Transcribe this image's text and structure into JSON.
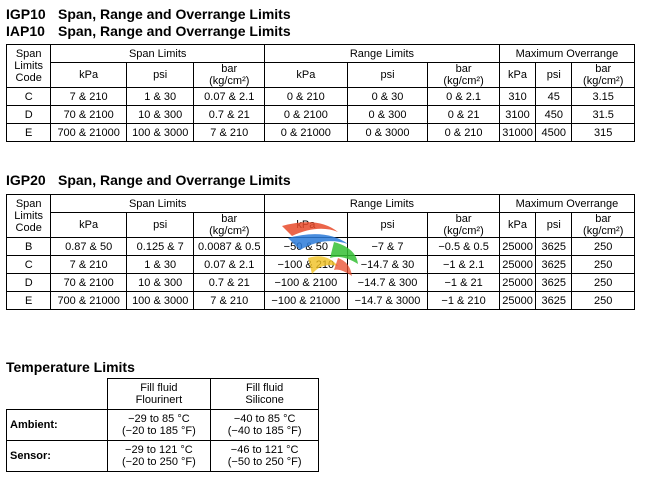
{
  "sections": {
    "igp10": {
      "code": "IGP10",
      "title": "Span, Range and Overrange Limits"
    },
    "iap10": {
      "code": "IAP10",
      "title": "Span, Range and Overrange Limits"
    },
    "igp20": {
      "code": "IGP20",
      "title": "Span, Range and Overrange Limits"
    },
    "temperature": {
      "title": "Temperature Limits"
    }
  },
  "table_headers": {
    "span_code": [
      "Span",
      "Limits",
      "Code"
    ],
    "span_limits": "Span Limits",
    "range_limits": "Range Limits",
    "max_overrange": "Maximum Overrange",
    "kpa": "kPa",
    "psi": "psi",
    "bar": "bar",
    "bar_unit": "(kg/cm²)"
  },
  "table1_rows": [
    {
      "code": "C",
      "span_kpa": "7 & 210",
      "span_psi": "1 & 30",
      "span_bar": "0.07 & 2.1",
      "range_kpa": "0 & 210",
      "range_psi": "0 & 30",
      "range_bar": "0 & 2.1",
      "over_kpa": "310",
      "over_psi": "45",
      "over_bar": "3.15"
    },
    {
      "code": "D",
      "span_kpa": "70 & 2100",
      "span_psi": "10 & 300",
      "span_bar": "0.7 & 21",
      "range_kpa": "0 & 2100",
      "range_psi": "0 & 300",
      "range_bar": "0 & 21",
      "over_kpa": "3100",
      "over_psi": "450",
      "over_bar": "31.5"
    },
    {
      "code": "E",
      "span_kpa": "700 & 21000",
      "span_psi": "100 & 3000",
      "span_bar": "7 & 210",
      "range_kpa": "0 & 21000",
      "range_psi": "0 & 3000",
      "range_bar": "0 & 210",
      "over_kpa": "31000",
      "over_psi": "4500",
      "over_bar": "315"
    }
  ],
  "table2_rows": [
    {
      "code": "B",
      "span_kpa": "0.87 & 50",
      "span_psi": "0.125 & 7",
      "span_bar": "0.0087 & 0.5",
      "range_kpa": "−50 & 50",
      "range_psi": "−7 & 7",
      "range_bar": "−0.5 & 0.5",
      "over_kpa": "25000",
      "over_psi": "3625",
      "over_bar": "250"
    },
    {
      "code": "C",
      "span_kpa": "7 & 210",
      "span_psi": "1 & 30",
      "span_bar": "0.07 & 2.1",
      "range_kpa": "−100 & 210",
      "range_psi": "−14.7 & 30",
      "range_bar": "−1 & 2.1",
      "over_kpa": "25000",
      "over_psi": "3625",
      "over_bar": "250"
    },
    {
      "code": "D",
      "span_kpa": "70 & 2100",
      "span_psi": "10 & 300",
      "span_bar": "0.7 & 21",
      "range_kpa": "−100 & 2100",
      "range_psi": "−14.7 & 300",
      "range_bar": "−1 & 21",
      "over_kpa": "25000",
      "over_psi": "3625",
      "over_bar": "250"
    },
    {
      "code": "E",
      "span_kpa": "700 & 21000",
      "span_psi": "100 & 3000",
      "span_bar": "7 & 210",
      "range_kpa": "−100 & 21000",
      "range_psi": "−14.7 & 3000",
      "range_bar": "−1 & 210",
      "over_kpa": "25000",
      "over_psi": "3625",
      "over_bar": "250"
    }
  ],
  "temperature": {
    "fill1": [
      "Fill fluid",
      "Flourinert"
    ],
    "fill2": [
      "Fill fluid",
      "Silicone"
    ],
    "ambient": {
      "label": "Ambient:",
      "f1": [
        "−29 to 85 °C",
        "(−20 to 185 °F)"
      ],
      "f2": [
        "−40 to 85 °C",
        "(−40 to 185 °F)"
      ]
    },
    "sensor": {
      "label": "Sensor:",
      "f1": [
        "−29 to 121 °C",
        "(−20 to 250 °F)"
      ],
      "f2": [
        "−46 to 121 °C",
        "(−50 to 250 °F)"
      ]
    }
  },
  "watermark": {
    "icon": "colorful-swirl-logo",
    "colors": [
      "#e84a2a",
      "#2a7ad8",
      "#35c035",
      "#f0c020"
    ]
  }
}
